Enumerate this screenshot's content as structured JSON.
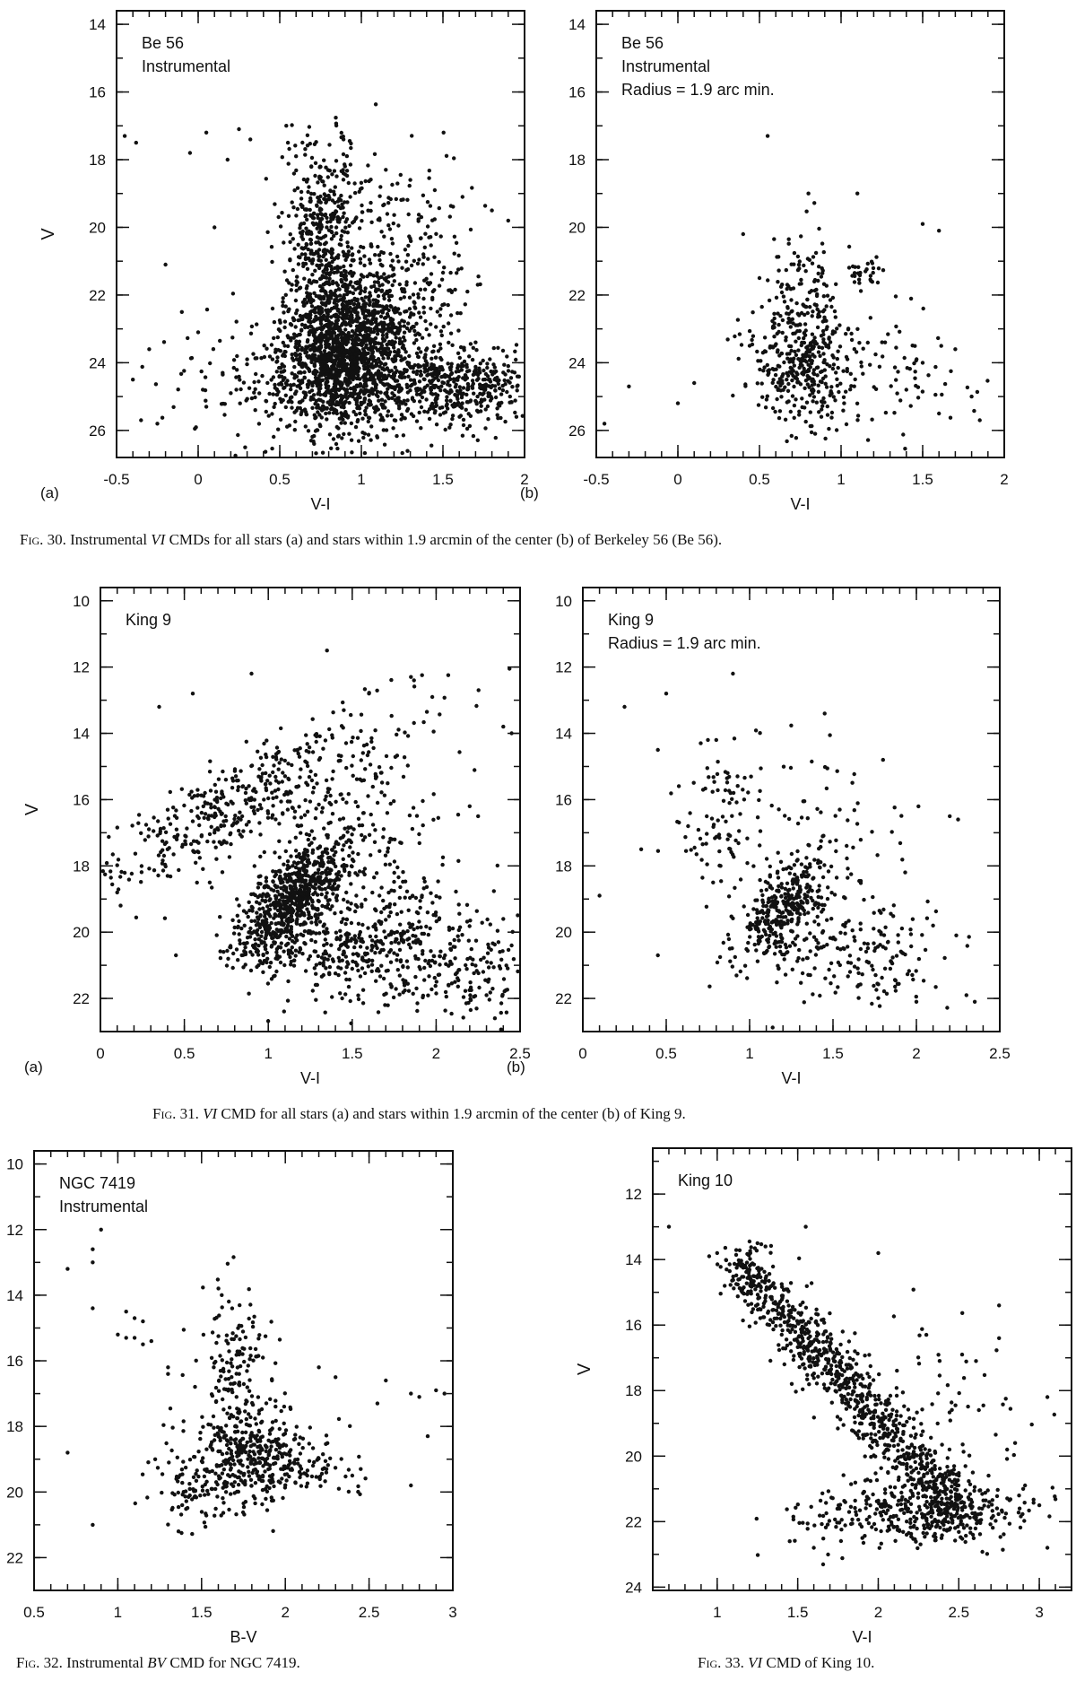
{
  "captions": {
    "fig30": {
      "label": "Fig. 30.",
      "pre": "Instrumental",
      "it": "VI",
      "post": "CMDs for all stars (a) and stars within 1.9 arcmin of the center (b) of Berkeley 56 (Be 56)."
    },
    "fig31": {
      "label": "Fig. 31.",
      "pre": "",
      "it": "VI",
      "post": "CMD for all stars (a) and stars within 1.9 arcmin of the center (b) of King 9."
    },
    "fig32": {
      "label": "Fig. 32.",
      "pre": "Instrumental",
      "it": "BV",
      "post": "CMD for NGC 7419."
    },
    "fig33": {
      "label": "Fig. 33.",
      "pre": "",
      "it": "VI",
      "post": "CMD of King 10."
    }
  },
  "chart_data": [
    {
      "id": "fig30a",
      "type": "scatter",
      "annotation": [
        "Be 56",
        "Instrumental"
      ],
      "panel_label": "(a)",
      "xlabel": "V-I",
      "ylabel": "V",
      "xlim": [
        -0.5,
        2
      ],
      "ylim": [
        26.8,
        13.6
      ],
      "y_inverted": true,
      "xticks": [
        "-0.5",
        "0",
        "0.5",
        "1",
        "1.5",
        "2"
      ],
      "xtick_values": [
        -0.5,
        0,
        0.5,
        1,
        1.5,
        2
      ],
      "yticks": [
        "14",
        "16",
        "18",
        "20",
        "22",
        "24",
        "26"
      ],
      "ytick_values": [
        14,
        16,
        18,
        20,
        22,
        24,
        26
      ],
      "points": [
        [
          -0.45,
          17.3
        ],
        [
          -0.38,
          17.5
        ],
        [
          0.05,
          17.2
        ],
        [
          0.25,
          17.1
        ],
        [
          0.32,
          17.4
        ],
        [
          -0.05,
          17.8
        ],
        [
          0.18,
          18.0
        ],
        [
          0.55,
          17.5
        ],
        [
          0.6,
          17.9
        ],
        [
          0.72,
          18.1
        ],
        [
          0.9,
          18.2
        ],
        [
          1.15,
          18.3
        ],
        [
          1.3,
          18.6
        ],
        [
          1.45,
          18.9
        ],
        [
          1.62,
          19.1
        ],
        [
          1.8,
          19.5
        ],
        [
          1.9,
          19.8
        ],
        [
          0.1,
          20.0
        ],
        [
          -0.2,
          21.1
        ],
        [
          -0.1,
          22.5
        ],
        [
          0.0,
          23.1
        ],
        [
          -0.3,
          23.6
        ],
        [
          -0.4,
          24.5
        ],
        [
          -0.35,
          25.7
        ],
        [
          -0.25,
          25.8
        ],
        [
          0.05,
          25.3
        ],
        [
          0.2,
          24.9
        ],
        [
          0.15,
          24.3
        ],
        [
          0.3,
          23.9
        ],
        [
          0.35,
          25.4
        ],
        [
          1.75,
          24.9
        ],
        [
          1.85,
          25.2
        ],
        [
          1.95,
          25.6
        ],
        [
          1.9,
          24.1
        ],
        [
          1.7,
          23.4
        ],
        [
          1.55,
          22.6
        ],
        [
          1.65,
          21.9
        ],
        [
          1.25,
          21.2
        ],
        [
          1.2,
          21.4
        ],
        [
          1.12,
          21.1
        ]
      ],
      "clusters": [
        {
          "cx": 0.9,
          "cy": 23.6,
          "sx": 0.18,
          "sy": 1.1,
          "n": 1400,
          "slope": 0
        },
        {
          "cx": 0.75,
          "cy": 21.0,
          "sx": 0.1,
          "sy": 1.5,
          "n": 320,
          "slope": 0
        },
        {
          "cx": 1.2,
          "cy": 22.0,
          "sx": 0.25,
          "sy": 1.8,
          "n": 420,
          "slope": 0
        },
        {
          "cx": 1.55,
          "cy": 24.7,
          "sx": 0.3,
          "sy": 0.6,
          "n": 520,
          "slope": 0
        },
        {
          "cx": 0.6,
          "cy": 24.5,
          "sx": 0.35,
          "sy": 0.9,
          "n": 280,
          "slope": 0
        },
        {
          "cx": 0.8,
          "cy": 19.0,
          "sx": 0.15,
          "sy": 0.8,
          "n": 120,
          "slope": 0
        }
      ],
      "seed": 11
    },
    {
      "id": "fig30b",
      "type": "scatter",
      "annotation": [
        "Be 56",
        "Instrumental",
        "Radius = 1.9 arc min."
      ],
      "panel_label": "(b)",
      "xlabel": "V-I",
      "ylabel": "",
      "xlim": [
        -0.5,
        2
      ],
      "ylim": [
        26.8,
        13.6
      ],
      "y_inverted": true,
      "xticks": [
        "-0.5",
        "0",
        "0.5",
        "1",
        "1.5",
        "2"
      ],
      "xtick_values": [
        -0.5,
        0,
        0.5,
        1,
        1.5,
        2
      ],
      "yticks": [
        "14",
        "16",
        "18",
        "20",
        "22",
        "24",
        "26"
      ],
      "ytick_values": [
        14,
        16,
        18,
        20,
        22,
        24,
        26
      ],
      "points": [
        [
          0.55,
          17.3
        ],
        [
          0.8,
          19.0
        ],
        [
          1.1,
          19.0
        ],
        [
          1.5,
          19.9
        ],
        [
          1.6,
          20.1
        ],
        [
          0.4,
          20.2
        ],
        [
          0.5,
          21.5
        ],
        [
          -0.3,
          24.7
        ],
        [
          -0.45,
          25.8
        ],
        [
          0.0,
          25.2
        ],
        [
          0.1,
          24.6
        ],
        [
          1.4,
          24.8
        ],
        [
          1.6,
          25.5
        ],
        [
          1.8,
          25.0
        ],
        [
          1.85,
          25.7
        ],
        [
          1.7,
          23.6
        ],
        [
          1.5,
          24.0
        ]
      ],
      "clusters": [
        {
          "cx": 0.75,
          "cy": 23.8,
          "sx": 0.15,
          "sy": 1.0,
          "n": 380,
          "slope": 0
        },
        {
          "cx": 1.15,
          "cy": 21.3,
          "sx": 0.08,
          "sy": 0.25,
          "n": 30,
          "slope": 0
        },
        {
          "cx": 0.8,
          "cy": 21.5,
          "sx": 0.12,
          "sy": 1.0,
          "n": 70,
          "slope": 0
        },
        {
          "cx": 1.2,
          "cy": 24.2,
          "sx": 0.3,
          "sy": 0.9,
          "n": 90,
          "slope": 0
        }
      ],
      "seed": 23
    },
    {
      "id": "fig31a",
      "type": "scatter",
      "annotation": [
        "King 9"
      ],
      "panel_label": "(a)",
      "xlabel": "V-I",
      "ylabel": "V",
      "xlim": [
        0,
        2.5
      ],
      "ylim": [
        23.0,
        9.6
      ],
      "y_inverted": true,
      "xticks": [
        "0",
        "0.5",
        "1",
        "1.5",
        "2",
        "2.5"
      ],
      "xtick_values": [
        0,
        0.5,
        1,
        1.5,
        2,
        2.5
      ],
      "yticks": [
        "10",
        "12",
        "14",
        "16",
        "18",
        "20",
        "22"
      ],
      "ytick_values": [
        10,
        12,
        14,
        16,
        18,
        20,
        22
      ],
      "points": [
        [
          1.35,
          11.5
        ],
        [
          0.9,
          12.2
        ],
        [
          1.85,
          12.3
        ],
        [
          0.35,
          13.2
        ],
        [
          0.55,
          12.8
        ],
        [
          1.6,
          12.8
        ],
        [
          1.45,
          13.3
        ],
        [
          2.4,
          13.8
        ],
        [
          2.45,
          14.0
        ],
        [
          0.1,
          18.8
        ],
        [
          0.12,
          19.2
        ],
        [
          0.4,
          17.5
        ],
        [
          0.4,
          18.3
        ],
        [
          0.45,
          20.7
        ],
        [
          2.2,
          16.2
        ],
        [
          2.25,
          16.5
        ],
        [
          2.4,
          19.6
        ],
        [
          2.45,
          20.4
        ],
        [
          2.3,
          21.9
        ],
        [
          2.35,
          22.6
        ]
      ],
      "clusters": [
        {
          "cx": 1.15,
          "cy": 19.0,
          "sx": 0.12,
          "sy": 0.9,
          "n": 700,
          "slope": -0.12
        },
        {
          "cx": 0.85,
          "cy": 16.0,
          "sx": 0.25,
          "sy": 1.4,
          "n": 420,
          "slope": -0.3
        },
        {
          "cx": 1.6,
          "cy": 20.4,
          "sx": 0.35,
          "sy": 0.9,
          "n": 450,
          "slope": 0
        },
        {
          "cx": 1.5,
          "cy": 17.0,
          "sx": 0.3,
          "sy": 1.6,
          "n": 200,
          "slope": 0
        },
        {
          "cx": 2.15,
          "cy": 21.0,
          "sx": 0.2,
          "sy": 0.9,
          "n": 120,
          "slope": 0
        }
      ],
      "seed": 37
    },
    {
      "id": "fig31b",
      "type": "scatter",
      "annotation": [
        "King 9",
        "Radius = 1.9 arc min."
      ],
      "panel_label": "(b)",
      "xlabel": "V-I",
      "ylabel": "",
      "xlim": [
        0,
        2.5
      ],
      "ylim": [
        23.0,
        9.6
      ],
      "y_inverted": true,
      "xticks": [
        "0",
        "0.5",
        "1",
        "1.5",
        "2",
        "2.5"
      ],
      "xtick_values": [
        0,
        0.5,
        1,
        1.5,
        2,
        2.5
      ],
      "yticks": [
        "10",
        "12",
        "14",
        "16",
        "18",
        "20",
        "22"
      ],
      "ytick_values": [
        10,
        12,
        14,
        16,
        18,
        20,
        22
      ],
      "points": [
        [
          0.9,
          12.2
        ],
        [
          0.5,
          12.8
        ],
        [
          0.25,
          13.2
        ],
        [
          0.8,
          14.2
        ],
        [
          0.75,
          14.2
        ],
        [
          1.45,
          13.4
        ],
        [
          0.45,
          14.5
        ],
        [
          0.35,
          17.5
        ],
        [
          0.45,
          20.7
        ],
        [
          0.1,
          18.9
        ],
        [
          2.2,
          16.5
        ],
        [
          2.25,
          16.6
        ],
        [
          1.8,
          14.8
        ],
        [
          2.1,
          19.8
        ],
        [
          2.3,
          21.9
        ],
        [
          2.35,
          22.1
        ],
        [
          2.0,
          22.1
        ]
      ],
      "clusters": [
        {
          "cx": 1.2,
          "cy": 19.3,
          "sx": 0.1,
          "sy": 0.8,
          "n": 330,
          "slope": -0.1
        },
        {
          "cx": 0.9,
          "cy": 16.5,
          "sx": 0.22,
          "sy": 1.2,
          "n": 110,
          "slope": 0
        },
        {
          "cx": 1.6,
          "cy": 20.6,
          "sx": 0.3,
          "sy": 0.8,
          "n": 200,
          "slope": 0
        },
        {
          "cx": 1.5,
          "cy": 17.2,
          "sx": 0.25,
          "sy": 1.4,
          "n": 60,
          "slope": 0
        }
      ],
      "seed": 41
    },
    {
      "id": "fig32",
      "type": "scatter",
      "annotation": [
        "NGC 7419",
        "Instrumental"
      ],
      "panel_label": "",
      "xlabel": "B-V",
      "ylabel": "",
      "xlim": [
        0.5,
        3
      ],
      "ylim": [
        23.0,
        9.6
      ],
      "y_inverted": true,
      "xticks": [
        "0.5",
        "1",
        "1.5",
        "2",
        "2.5",
        "3"
      ],
      "xtick_values": [
        0.5,
        1,
        1.5,
        2,
        2.5,
        3
      ],
      "yticks": [
        "10",
        "12",
        "14",
        "16",
        "18",
        "20",
        "22"
      ],
      "ytick_values": [
        10,
        12,
        14,
        16,
        18,
        20,
        22
      ],
      "points": [
        [
          0.9,
          12.0
        ],
        [
          0.85,
          12.6
        ],
        [
          0.85,
          13.0
        ],
        [
          0.7,
          13.2
        ],
        [
          0.85,
          14.4
        ],
        [
          1.05,
          14.5
        ],
        [
          1.1,
          14.7
        ],
        [
          1.15,
          14.8
        ],
        [
          1.0,
          15.2
        ],
        [
          1.05,
          15.3
        ],
        [
          1.1,
          15.3
        ],
        [
          1.2,
          15.4
        ],
        [
          1.15,
          15.5
        ],
        [
          1.3,
          16.2
        ],
        [
          1.3,
          16.4
        ],
        [
          0.85,
          21.0
        ],
        [
          0.7,
          18.8
        ],
        [
          2.6,
          16.6
        ],
        [
          2.75,
          17.0
        ],
        [
          2.8,
          17.1
        ],
        [
          2.9,
          16.9
        ],
        [
          2.95,
          17.0
        ],
        [
          2.85,
          18.3
        ],
        [
          2.45,
          19.3
        ],
        [
          2.4,
          19.5
        ],
        [
          2.75,
          19.8
        ],
        [
          2.2,
          16.2
        ],
        [
          2.3,
          16.5
        ],
        [
          2.55,
          17.3
        ]
      ],
      "clusters": [
        {
          "cx": 1.75,
          "cy": 19.0,
          "sx": 0.2,
          "sy": 0.8,
          "n": 350,
          "slope": 0
        },
        {
          "cx": 1.7,
          "cy": 16.5,
          "sx": 0.12,
          "sy": 1.5,
          "n": 160,
          "slope": 0
        },
        {
          "cx": 2.1,
          "cy": 19.2,
          "sx": 0.2,
          "sy": 0.5,
          "n": 90,
          "slope": 0
        },
        {
          "cx": 1.45,
          "cy": 20.2,
          "sx": 0.15,
          "sy": 0.5,
          "n": 60,
          "slope": 0
        }
      ],
      "seed": 53
    },
    {
      "id": "fig33",
      "type": "scatter",
      "annotation": [
        "King 10"
      ],
      "panel_label": "",
      "xlabel": "V-I",
      "ylabel": "V",
      "xlim": [
        0.6,
        3.2
      ],
      "ylim": [
        24.1,
        10.6
      ],
      "y_inverted": true,
      "xticks": [
        "1",
        "1.5",
        "2",
        "2.5",
        "3"
      ],
      "xtick_values": [
        1,
        1.5,
        2,
        2.5,
        3
      ],
      "yticks": [
        "12",
        "14",
        "16",
        "18",
        "20",
        "22",
        "24"
      ],
      "ytick_values": [
        12,
        14,
        16,
        18,
        20,
        22,
        24
      ],
      "points": [
        [
          0.7,
          13.0
        ],
        [
          1.0,
          13.8
        ],
        [
          0.95,
          13.9
        ],
        [
          1.25,
          13.5
        ],
        [
          1.3,
          13.6
        ],
        [
          1.55,
          13.0
        ],
        [
          2.0,
          13.8
        ],
        [
          2.75,
          15.4
        ],
        [
          2.75,
          16.4
        ],
        [
          3.05,
          18.2
        ],
        [
          1.6,
          22.8
        ],
        [
          1.45,
          22.6
        ],
        [
          2.8,
          19.8
        ],
        [
          2.85,
          19.6
        ],
        [
          2.9,
          21.0
        ],
        [
          3.05,
          22.8
        ],
        [
          3.0,
          21.5
        ]
      ],
      "band": {
        "x0": 1.15,
        "y0": 14.2,
        "x1": 2.55,
        "y1": 22.0,
        "sx": 0.1,
        "n": 900
      },
      "clusters": [
        {
          "cx": 2.3,
          "cy": 21.6,
          "sx": 0.3,
          "sy": 0.5,
          "n": 250,
          "slope": 0
        },
        {
          "cx": 2.4,
          "cy": 19.0,
          "sx": 0.3,
          "sy": 1.5,
          "n": 80,
          "slope": 0
        },
        {
          "cx": 1.9,
          "cy": 21.8,
          "sx": 0.25,
          "sy": 0.6,
          "n": 90,
          "slope": 0
        },
        {
          "cx": 1.22,
          "cy": 14.3,
          "sx": 0.05,
          "sy": 0.5,
          "n": 40,
          "slope": 0
        }
      ],
      "seed": 67
    }
  ]
}
